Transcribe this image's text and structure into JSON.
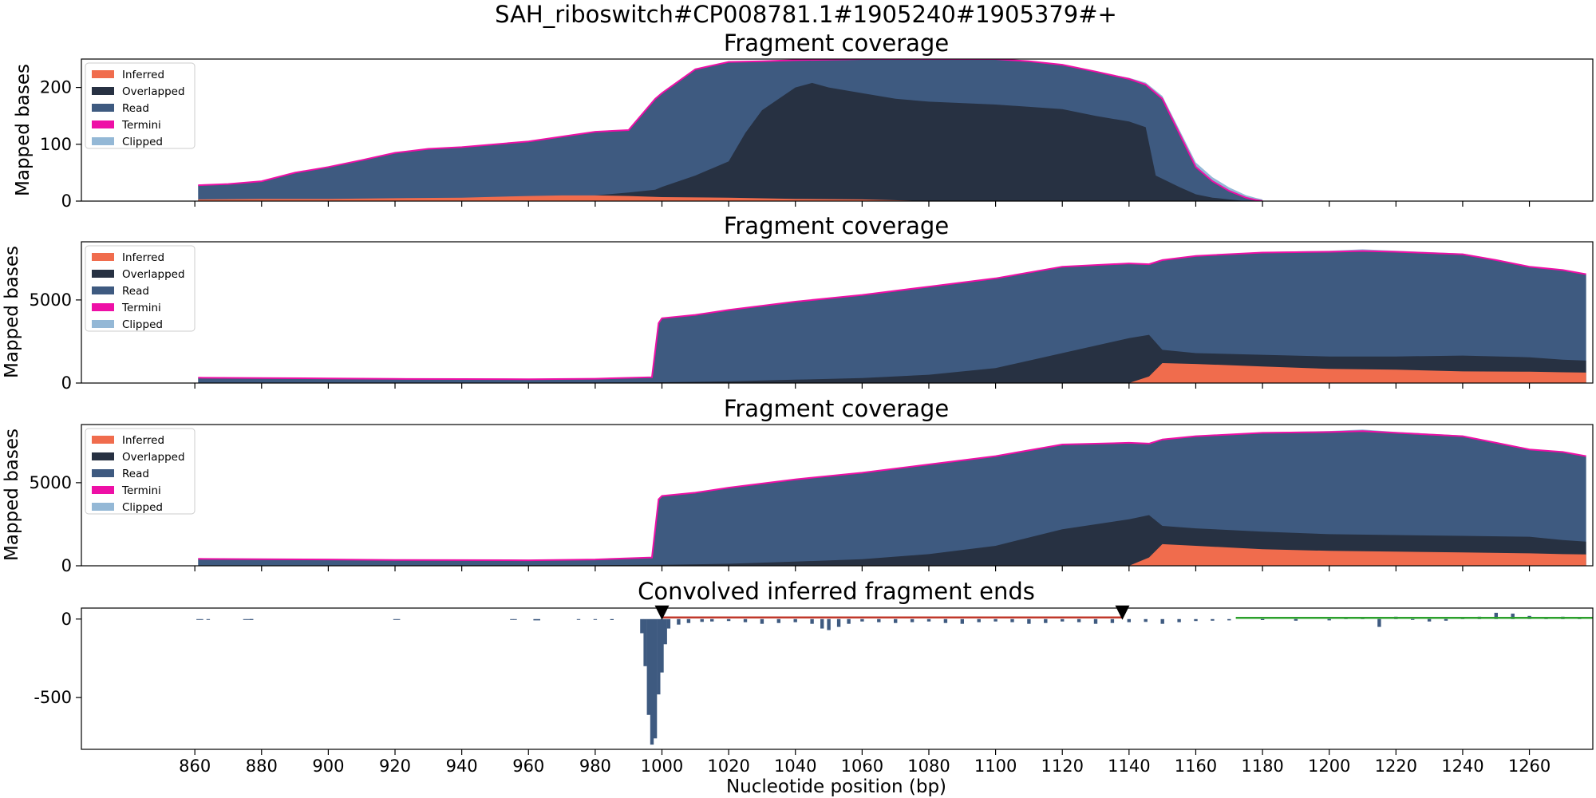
{
  "figure": {
    "suptitle": "SAH_riboswitch#CP008781.1#1905240#1905379#+",
    "xlabel": "Nucleotide position (bp)"
  },
  "colors": {
    "Inferred": "#f06c4d",
    "Overlapped": "#273142",
    "Read": "#3e5a80",
    "Termini": "#ee0fa6",
    "Clipped": "#94b8d6",
    "ends_bar": "#3e5a80",
    "red_line": "#c0392b",
    "green_line": "#2ca02c",
    "marker": "#000000"
  },
  "chart_data": [
    {
      "type": "area",
      "title": "Fragment coverage",
      "ylabel": "Mapped bases",
      "xlim": [
        826,
        1279
      ],
      "ylim": [
        0,
        250
      ],
      "yticks": [
        0,
        100,
        200
      ],
      "ytick_labels": [
        "0",
        "100",
        "200"
      ],
      "legend": {
        "position": "top-left",
        "entries": [
          "Inferred",
          "Overlapped",
          "Read",
          "Termini",
          "Clipped"
        ]
      },
      "series": [
        {
          "name": "Read",
          "x": [
            861,
            870,
            880,
            890,
            900,
            910,
            920,
            930,
            940,
            960,
            980,
            990,
            998,
            1000,
            1010,
            1020,
            1030,
            1040,
            1060,
            1080,
            1100,
            1110,
            1120,
            1130,
            1140,
            1145,
            1150,
            1155,
            1160,
            1165,
            1170,
            1175,
            1178,
            1180
          ],
          "y": [
            28,
            30,
            35,
            50,
            60,
            72,
            85,
            92,
            95,
            105,
            122,
            125,
            180,
            190,
            232,
            245,
            246,
            248,
            250,
            250,
            250,
            246,
            240,
            228,
            215,
            205,
            180,
            120,
            60,
            35,
            18,
            6,
            2,
            0
          ]
        },
        {
          "name": "Overlapped",
          "x": [
            861,
            940,
            960,
            980,
            990,
            998,
            1000,
            1010,
            1020,
            1025,
            1030,
            1040,
            1045,
            1050,
            1060,
            1070,
            1080,
            1100,
            1120,
            1130,
            1140,
            1145,
            1148,
            1155,
            1160,
            1165,
            1170,
            1175
          ],
          "y": [
            2,
            3,
            5,
            10,
            15,
            20,
            25,
            45,
            70,
            120,
            160,
            200,
            208,
            200,
            190,
            180,
            175,
            170,
            162,
            150,
            140,
            130,
            45,
            25,
            12,
            6,
            3,
            0
          ]
        },
        {
          "name": "Inferred",
          "x": [
            861,
            880,
            900,
            920,
            940,
            960,
            970,
            980,
            990,
            1000,
            1020,
            1040,
            1060,
            1080
          ],
          "y": [
            3,
            4,
            4,
            5,
            6,
            9,
            10,
            10,
            9,
            7,
            6,
            4,
            3,
            0
          ]
        },
        {
          "name": "Clipped",
          "x": [
            1140,
            1150,
            1160,
            1170,
            1180,
            1200,
            1220,
            1240
          ],
          "y": [
            2,
            5,
            8,
            6,
            3,
            1,
            0,
            0
          ]
        }
      ]
    },
    {
      "type": "area",
      "title": "Fragment coverage",
      "ylabel": "Mapped bases",
      "xlim": [
        826,
        1279
      ],
      "ylim": [
        0,
        8500
      ],
      "yticks": [
        0,
        5000
      ],
      "ytick_labels": [
        "0",
        "5000"
      ],
      "legend": {
        "position": "top-left",
        "entries": [
          "Inferred",
          "Overlapped",
          "Read",
          "Termini",
          "Clipped"
        ]
      },
      "series": [
        {
          "name": "Read",
          "x": [
            861,
            880,
            900,
            920,
            940,
            960,
            980,
            997,
            999,
            1000,
            1010,
            1020,
            1040,
            1060,
            1080,
            1100,
            1120,
            1140,
            1146,
            1150,
            1160,
            1180,
            1200,
            1210,
            1220,
            1240,
            1250,
            1260,
            1270,
            1277
          ],
          "y": [
            320,
            300,
            280,
            250,
            240,
            230,
            260,
            350,
            3600,
            3900,
            4100,
            4400,
            4900,
            5300,
            5800,
            6300,
            7000,
            7200,
            7150,
            7400,
            7650,
            7850,
            7900,
            7950,
            7900,
            7750,
            7400,
            7000,
            6800,
            6550
          ]
        },
        {
          "name": "Overlapped",
          "x": [
            861,
            980,
            1000,
            1020,
            1040,
            1060,
            1080,
            1100,
            1120,
            1140,
            1146,
            1150,
            1160,
            1180,
            1200,
            1220,
            1240,
            1260,
            1270,
            1277
          ],
          "y": [
            20,
            30,
            50,
            100,
            200,
            300,
            500,
            900,
            1800,
            2700,
            2900,
            2000,
            1800,
            1700,
            1600,
            1600,
            1650,
            1550,
            1400,
            1350
          ]
        },
        {
          "name": "Inferred",
          "x": [
            861,
            1140,
            1146,
            1150,
            1160,
            1180,
            1200,
            1220,
            1240,
            1260,
            1270,
            1277
          ],
          "y": [
            0,
            0,
            400,
            1200,
            1150,
            1000,
            850,
            800,
            700,
            680,
            650,
            630
          ]
        },
        {
          "name": "Clipped",
          "x": [
            1160,
            1180,
            1200,
            1210,
            1220,
            1240,
            1260,
            1277
          ],
          "y": [
            20,
            40,
            60,
            100,
            60,
            40,
            30,
            20
          ]
        }
      ]
    },
    {
      "type": "area",
      "title": "Fragment coverage",
      "ylabel": "Mapped bases",
      "xlim": [
        826,
        1279
      ],
      "ylim": [
        0,
        8500
      ],
      "yticks": [
        0,
        5000
      ],
      "ytick_labels": [
        "0",
        "5000"
      ],
      "legend": {
        "position": "top-left",
        "entries": [
          "Inferred",
          "Overlapped",
          "Read",
          "Termini",
          "Clipped"
        ]
      },
      "series": [
        {
          "name": "Read",
          "x": [
            861,
            880,
            900,
            920,
            940,
            960,
            980,
            997,
            999,
            1000,
            1010,
            1020,
            1040,
            1060,
            1080,
            1100,
            1120,
            1140,
            1146,
            1150,
            1160,
            1180,
            1200,
            1210,
            1220,
            1240,
            1250,
            1260,
            1270,
            1277
          ],
          "y": [
            420,
            400,
            380,
            350,
            340,
            330,
            380,
            500,
            4000,
            4200,
            4400,
            4700,
            5200,
            5600,
            6100,
            6600,
            7300,
            7400,
            7350,
            7600,
            7800,
            8000,
            8050,
            8100,
            8000,
            7800,
            7400,
            7000,
            6850,
            6600
          ]
        },
        {
          "name": "Overlapped",
          "x": [
            861,
            980,
            1000,
            1020,
            1040,
            1060,
            1080,
            1100,
            1120,
            1140,
            1146,
            1150,
            1160,
            1180,
            1200,
            1220,
            1240,
            1260,
            1270,
            1277
          ],
          "y": [
            20,
            40,
            60,
            120,
            250,
            400,
            700,
            1200,
            2200,
            2800,
            3050,
            2400,
            2250,
            2050,
            1900,
            1850,
            1800,
            1750,
            1550,
            1450
          ]
        },
        {
          "name": "Inferred",
          "x": [
            861,
            1140,
            1146,
            1150,
            1160,
            1180,
            1200,
            1220,
            1240,
            1260,
            1270,
            1277
          ],
          "y": [
            0,
            0,
            500,
            1300,
            1200,
            1000,
            900,
            850,
            800,
            750,
            700,
            680
          ]
        },
        {
          "name": "Clipped",
          "x": [
            1160,
            1180,
            1200,
            1210,
            1220,
            1240,
            1260,
            1277
          ],
          "y": [
            20,
            40,
            60,
            100,
            60,
            40,
            30,
            20
          ]
        }
      ]
    },
    {
      "type": "bar",
      "title": "Convolved inferred fragment ends",
      "ylabel": "",
      "xlim": [
        826,
        1279
      ],
      "ylim": [
        -830,
        70
      ],
      "yticks": [
        0,
        -500
      ],
      "ytick_labels": [
        "0",
        "-500"
      ],
      "xticks": [
        860,
        880,
        900,
        920,
        940,
        960,
        980,
        1000,
        1020,
        1040,
        1060,
        1080,
        1100,
        1120,
        1140,
        1160,
        1180,
        1200,
        1220,
        1240,
        1260
      ],
      "xtick_labels": [
        "860",
        "880",
        "900",
        "920",
        "940",
        "960",
        "980",
        "1000",
        "1020",
        "1040",
        "1060",
        "1080",
        "1100",
        "1120",
        "1140",
        "1160",
        "1180",
        "1200",
        "1220",
        "1240",
        "1260"
      ],
      "series": [
        {
          "name": "ends",
          "x": [
            861,
            862,
            864,
            875,
            876,
            877,
            877,
            920,
            921,
            955,
            956,
            962,
            963,
            975,
            980,
            985,
            994,
            995,
            996,
            997,
            998,
            999,
            1000,
            1001,
            1002,
            1005,
            1008,
            1012,
            1015,
            1020,
            1025,
            1030,
            1035,
            1040,
            1045,
            1048,
            1050,
            1053,
            1056,
            1060,
            1065,
            1070,
            1075,
            1080,
            1085,
            1090,
            1095,
            1100,
            1105,
            1110,
            1115,
            1120,
            1125,
            1130,
            1135,
            1140,
            1145,
            1150,
            1155,
            1160,
            1165,
            1170,
            1180,
            1190,
            1200,
            1205,
            1210,
            1215,
            1220,
            1225,
            1230,
            1235,
            1240,
            1245,
            1250,
            1255,
            1260,
            1265,
            1270,
            1275
          ],
          "y": [
            -5,
            -5,
            -5,
            -5,
            -5,
            -5,
            -5,
            -5,
            -5,
            -5,
            -5,
            -8,
            -8,
            -5,
            -5,
            -6,
            -90,
            -300,
            -610,
            -800,
            -760,
            -480,
            -340,
            -160,
            -60,
            -35,
            -25,
            -18,
            -15,
            -12,
            -20,
            -30,
            -25,
            -20,
            -30,
            -60,
            -70,
            -50,
            -30,
            -15,
            -20,
            -25,
            -20,
            -15,
            -25,
            -30,
            -20,
            -15,
            -20,
            -30,
            -25,
            -15,
            -20,
            -30,
            -25,
            -20,
            -18,
            -30,
            -20,
            -12,
            -10,
            -8,
            -6,
            -10,
            -8,
            5,
            10,
            -50,
            15,
            -5,
            -15,
            -10,
            5,
            15,
            40,
            35,
            20,
            10,
            15,
            10
          ]
        }
      ],
      "lines": [
        {
          "name": "red_line",
          "x": [
            1000,
            1138
          ],
          "y": [
            10,
            10
          ]
        },
        {
          "name": "green_line",
          "x": [
            1172,
            1279
          ],
          "y": [
            8,
            8
          ]
        }
      ],
      "markers": [
        {
          "name": "start_marker",
          "x": 1000,
          "y": 0
        },
        {
          "name": "end_marker",
          "x": 1138,
          "y": 0
        }
      ]
    }
  ]
}
